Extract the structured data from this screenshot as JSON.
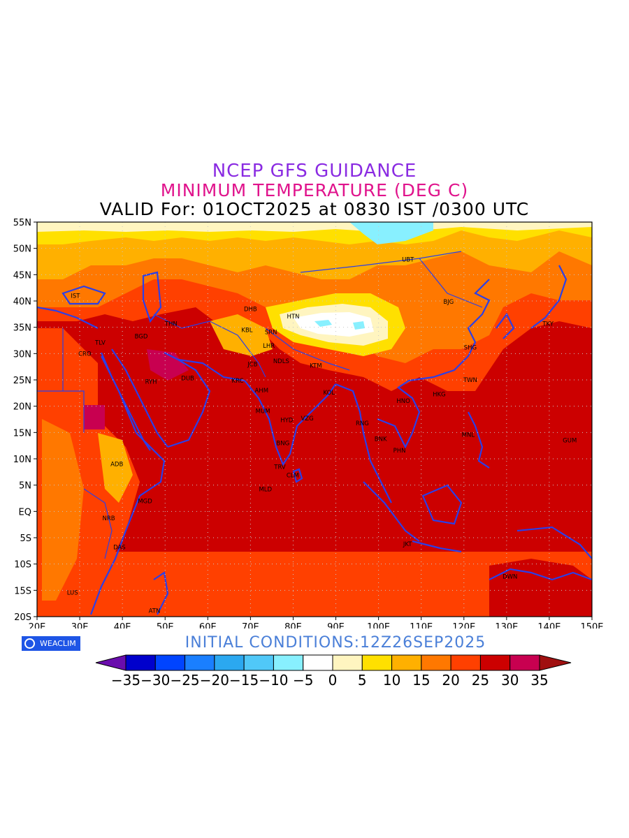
{
  "titles": {
    "line1": "NCEP GFS GUIDANCE",
    "line2": "MINIMUM TEMPERATURE (DEG C)",
    "line3": "VALID For: 01OCT2025 at 0830 IST /0300 UTC"
  },
  "initial_conditions": "INITIAL CONDITIONS:12Z26SEP2025",
  "logo": {
    "text": "WEACLIM",
    "icon": "globe-icon"
  },
  "axes": {
    "lon_labels": [
      "20E",
      "30E",
      "40E",
      "50E",
      "60E",
      "70E",
      "80E",
      "90E",
      "100E",
      "110E",
      "120E",
      "130E",
      "140E",
      "150E"
    ],
    "lat_labels": [
      "55N",
      "50N",
      "45N",
      "40N",
      "35N",
      "30N",
      "25N",
      "20N",
      "15N",
      "10N",
      "5N",
      "EQ",
      "5S",
      "10S",
      "15S",
      "20S"
    ],
    "lon_range": [
      20,
      150
    ],
    "lat_range": [
      -20,
      55
    ]
  },
  "colorbar": {
    "labels": [
      "-35",
      "-30",
      "-25",
      "-20",
      "-15",
      "-10",
      "-5",
      "0",
      "5",
      "10",
      "15",
      "20",
      "25",
      "30",
      "35"
    ],
    "colors": [
      "#6a0dad",
      "#0000cc",
      "#0044ff",
      "#1a7fff",
      "#2ba8f0",
      "#50c8f8",
      "#88f0ff",
      "#ffffff",
      "#fff5c0",
      "#ffe000",
      "#ffb000",
      "#ff7800",
      "#ff4000",
      "#cc0000",
      "#c80050",
      "#a01010"
    ]
  },
  "stations": [
    {
      "code": "UBT",
      "lon": 106.9,
      "lat": 47.9
    },
    {
      "code": "BJG",
      "lon": 116.4,
      "lat": 39.9
    },
    {
      "code": "TKY",
      "lon": 139.7,
      "lat": 35.7
    },
    {
      "code": "SHG",
      "lon": 121.5,
      "lat": 31.2
    },
    {
      "code": "TWN",
      "lon": 121.5,
      "lat": 25.0
    },
    {
      "code": "HKG",
      "lon": 114.2,
      "lat": 22.3
    },
    {
      "code": "HNO",
      "lon": 105.8,
      "lat": 21.0
    },
    {
      "code": "MNL",
      "lon": 121.0,
      "lat": 14.6
    },
    {
      "code": "GUM",
      "lon": 144.8,
      "lat": 13.5
    },
    {
      "code": "BNK",
      "lon": 100.5,
      "lat": 13.8
    },
    {
      "code": "PHN",
      "lon": 104.9,
      "lat": 11.6
    },
    {
      "code": "RNG",
      "lon": 96.2,
      "lat": 16.8
    },
    {
      "code": "KOL",
      "lon": 88.4,
      "lat": 22.6
    },
    {
      "code": "KTM",
      "lon": 85.3,
      "lat": 27.7
    },
    {
      "code": "HTN",
      "lon": 80.0,
      "lat": 37.1
    },
    {
      "code": "DHB",
      "lon": 70.0,
      "lat": 38.5
    },
    {
      "code": "KBL",
      "lon": 69.2,
      "lat": 34.5
    },
    {
      "code": "SRN",
      "lon": 74.8,
      "lat": 34.1
    },
    {
      "code": "LHR",
      "lon": 74.3,
      "lat": 31.5
    },
    {
      "code": "NDLS",
      "lon": 77.2,
      "lat": 28.6
    },
    {
      "code": "JCB",
      "lon": 70.5,
      "lat": 28.0
    },
    {
      "code": "KRC",
      "lon": 67.0,
      "lat": 24.9
    },
    {
      "code": "AHM",
      "lon": 72.6,
      "lat": 23.0
    },
    {
      "code": "MUM",
      "lon": 72.9,
      "lat": 19.1
    },
    {
      "code": "HYD",
      "lon": 78.5,
      "lat": 17.4
    },
    {
      "code": "VZG",
      "lon": 83.3,
      "lat": 17.7
    },
    {
      "code": "BNG",
      "lon": 77.6,
      "lat": 12.97
    },
    {
      "code": "TRV",
      "lon": 76.9,
      "lat": 8.5
    },
    {
      "code": "CLM",
      "lon": 79.9,
      "lat": 6.9
    },
    {
      "code": "MLD",
      "lon": 73.5,
      "lat": 4.2
    },
    {
      "code": "THN",
      "lon": 51.4,
      "lat": 35.7
    },
    {
      "code": "BGD",
      "lon": 44.4,
      "lat": 33.3
    },
    {
      "code": "RYH",
      "lon": 46.7,
      "lat": 24.7
    },
    {
      "code": "DUB",
      "lon": 55.3,
      "lat": 25.3
    },
    {
      "code": "IST",
      "lon": 29.0,
      "lat": 41.0
    },
    {
      "code": "TLV",
      "lon": 34.8,
      "lat": 32.1
    },
    {
      "code": "CRO",
      "lon": 31.2,
      "lat": 30.0
    },
    {
      "code": "ADB",
      "lon": 38.7,
      "lat": 9.0
    },
    {
      "code": "MGD",
      "lon": 45.3,
      "lat": 2.0
    },
    {
      "code": "NRB",
      "lon": 36.8,
      "lat": -1.3
    },
    {
      "code": "DAS",
      "lon": 39.3,
      "lat": -6.8
    },
    {
      "code": "LUS",
      "lon": 28.3,
      "lat": -15.4
    },
    {
      "code": "ATN",
      "lon": 47.5,
      "lat": -18.9
    },
    {
      "code": "JKT",
      "lon": 106.8,
      "lat": -6.2
    },
    {
      "code": "DWN",
      "lon": 130.8,
      "lat": -12.4
    }
  ]
}
